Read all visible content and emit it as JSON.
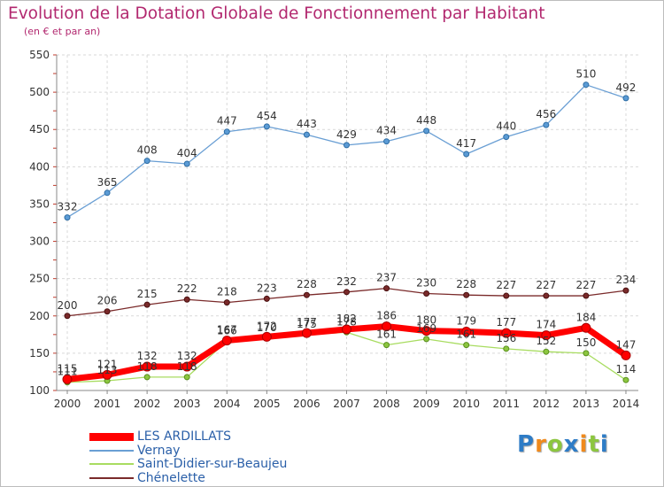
{
  "chart_data": {
    "type": "line",
    "title": "Evolution de la Dotation Globale de Fonctionnement par Habitant",
    "subtitle": "(en € et par an)",
    "xlabel": "",
    "ylabel": "",
    "x": [
      "2000",
      "2001",
      "2002",
      "2003",
      "2004",
      "2005",
      "2006",
      "2007",
      "2008",
      "2009",
      "2010",
      "2011",
      "2012",
      "2013",
      "2014"
    ],
    "yticks": [
      100,
      150,
      200,
      250,
      300,
      350,
      400,
      450,
      500,
      550
    ],
    "ylim": [
      100,
      550
    ],
    "legend_position": "bottom-left",
    "series": [
      {
        "name": "LES ARDILLATS",
        "color": "#ff0000",
        "values": [
          115,
          121,
          132,
          132,
          167,
          172,
          177,
          182,
          186,
          180,
          179,
          177,
          174,
          184,
          147
        ],
        "labels": [
          "115",
          "121",
          "132",
          "132",
          "167",
          "172",
          "177",
          "182",
          "186",
          "180",
          "179",
          "177",
          "174",
          "184",
          "147"
        ]
      },
      {
        "name": "Vernay",
        "color": "#6a9fd4",
        "values": [
          332,
          365,
          408,
          404,
          447,
          454,
          443,
          429,
          434,
          448,
          417,
          440,
          456,
          510,
          492
        ],
        "labels": [
          "332",
          "365",
          "408",
          "404",
          "447",
          "454",
          "443",
          "429",
          "434",
          "448",
          "417",
          "440",
          "456",
          "510",
          "492"
        ]
      },
      {
        "name": "Saint-Didier-sur-Beaujeu",
        "color": "#a8dc60",
        "values": [
          111,
          113,
          118,
          118,
          166,
          170,
          175,
          178,
          161,
          169,
          161,
          156,
          152,
          150,
          114
        ],
        "labels": [
          "111",
          "113",
          "118",
          "118",
          "166",
          "170",
          "175",
          "178",
          "161",
          "169",
          "161",
          "156",
          "152",
          "150",
          "114"
        ]
      },
      {
        "name": "Chénelette",
        "color": "#7a2a2a",
        "values": [
          200,
          206,
          215,
          222,
          218,
          223,
          228,
          232,
          237,
          230,
          228,
          227,
          227,
          227,
          234
        ],
        "labels": [
          "200",
          "206",
          "215",
          "222",
          "218",
          "223",
          "228",
          "232",
          "237",
          "230",
          "228",
          "227",
          "227",
          "227",
          "234"
        ]
      }
    ]
  },
  "brand": {
    "letters": [
      "P",
      "r",
      "o",
      "x",
      "i",
      "t",
      "i"
    ],
    "colors": [
      "#2e7cc6",
      "#f08a1c",
      "#8cc63f",
      "#2e7cc6",
      "#f08a1c",
      "#8cc63f",
      "#2e7cc6"
    ]
  }
}
